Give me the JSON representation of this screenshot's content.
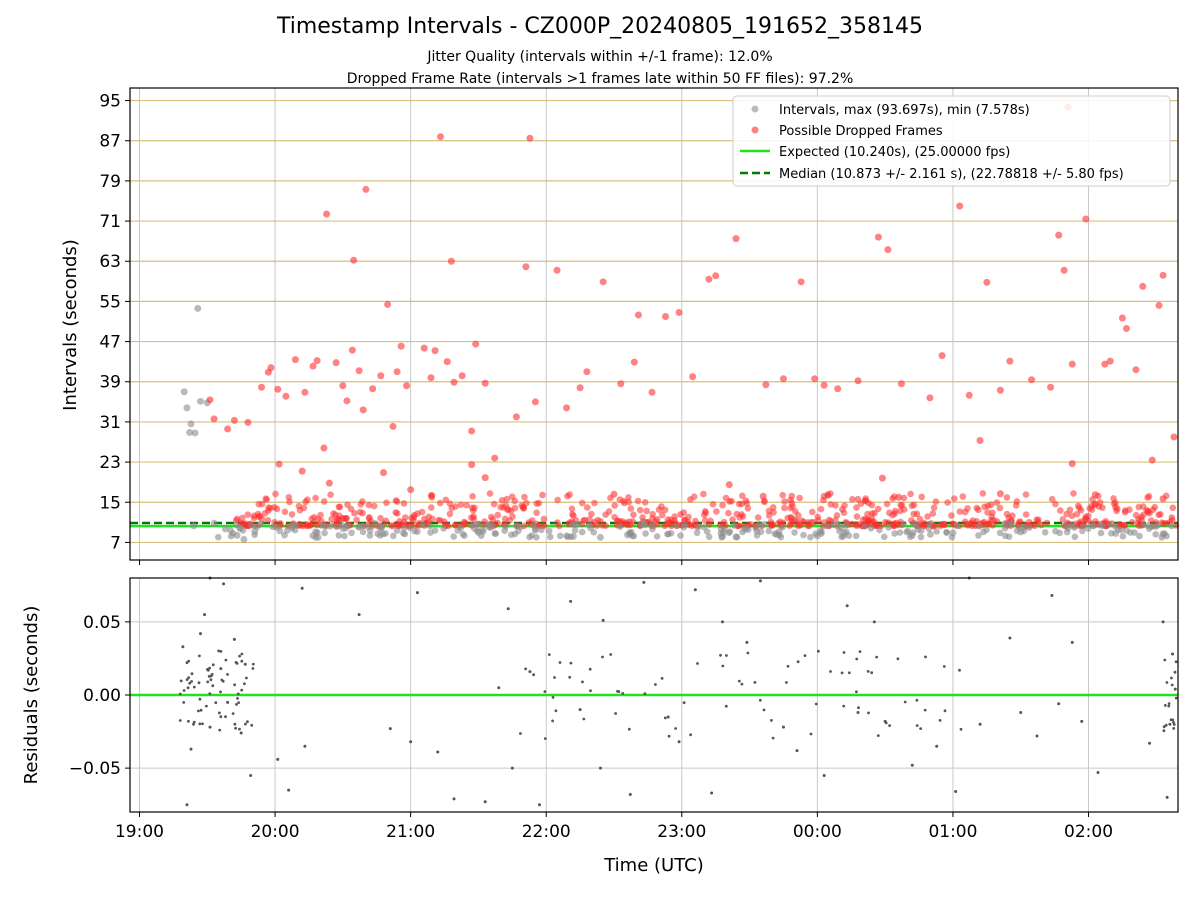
{
  "title": "Timestamp Intervals - CZ000P_20240805_191652_358145",
  "subtitle_1": "Jitter Quality (intervals within +/-1 frame): 12.0%",
  "subtitle_2": "Dropped Frame Rate (intervals >1 frames late within 50 FF files): 97.2%",
  "colors": {
    "intervals": "#8c8c8c",
    "dropped": "#ff2d2d",
    "expected": "#22e022",
    "median": "#007a00",
    "hgrid_top": "#d8bf7e",
    "grid": "#c8c8c8",
    "residuals": "#555555"
  },
  "chart_data": [
    {
      "type": "scatter",
      "panel": "top",
      "xlabel": "",
      "ylabel": "Intervals (seconds)",
      "ylim": [
        3.5,
        97.5
      ],
      "yticks": [
        "7",
        "15",
        "23",
        "31",
        "39",
        "47",
        "55",
        "63",
        "71",
        "79",
        "87",
        "95"
      ],
      "xlim_hours": [
        18.93,
        26.66
      ],
      "grid": "horizontal tan lines at y ticks, vertical gray lines at x ticks",
      "legend_placement": "top-right",
      "legend": [
        "Intervals, max (93.697s), min (7.578s)",
        "Possible Dropped Frames",
        "Expected (10.240s), (25.00000 fps)",
        "Median (10.873 +/- 2.161 s), (22.78818 +/- 5.80 fps)"
      ],
      "expected_interval": 10.24,
      "median_interval": 10.873,
      "series": [
        {
          "name": "Intervals, max (93.697s), min (7.578s)",
          "marker": "gray dots",
          "points": [
            [
              19.33,
              37.0
            ],
            [
              19.35,
              33.8
            ],
            [
              19.37,
              28.9
            ],
            [
              19.38,
              30.6
            ],
            [
              19.41,
              28.8
            ],
            [
              19.43,
              53.6
            ],
            [
              19.45,
              35.1
            ],
            [
              19.5,
              34.8
            ],
            [
              19.4,
              10.3
            ],
            [
              19.55,
              10.8
            ],
            [
              19.72,
              8.4
            ],
            [
              19.77,
              7.6
            ],
            [
              19.85,
              9.2
            ],
            [
              20.3,
              9.1
            ],
            [
              20.9,
              9.4
            ],
            [
              21.5,
              9.0
            ],
            [
              22.2,
              8.2
            ],
            [
              22.4,
              8.0
            ],
            [
              22.6,
              8.5
            ],
            [
              23.3,
              8.2
            ],
            [
              23.4,
              8.1
            ],
            [
              23.7,
              8.6
            ],
            [
              24.0,
              8.3
            ],
            [
              24.2,
              8.8
            ],
            [
              24.7,
              8.4
            ],
            [
              25.0,
              8.9
            ],
            [
              25.5,
              9.1
            ],
            [
              26.2,
              8.8
            ],
            [
              26.55,
              8.7
            ]
          ]
        },
        {
          "name": "Possible Dropped Frames",
          "marker": "red dots",
          "points": [
            [
              19.52,
              35.4
            ],
            [
              19.55,
              31.6
            ],
            [
              19.65,
              29.6
            ],
            [
              19.7,
              31.3
            ],
            [
              19.8,
              30.9
            ],
            [
              19.9,
              37.9
            ],
            [
              19.95,
              40.9
            ],
            [
              19.97,
              41.8
            ],
            [
              20.02,
              37.5
            ],
            [
              20.08,
              36.1
            ],
            [
              20.15,
              43.4
            ],
            [
              20.22,
              36.9
            ],
            [
              20.28,
              42.1
            ],
            [
              20.31,
              43.2
            ],
            [
              20.36,
              25.8
            ],
            [
              20.38,
              72.4
            ],
            [
              20.45,
              42.8
            ],
            [
              20.5,
              38.2
            ],
            [
              20.53,
              35.2
            ],
            [
              20.57,
              45.3
            ],
            [
              20.58,
              63.2
            ],
            [
              20.62,
              41.2
            ],
            [
              20.65,
              33.4
            ],
            [
              20.67,
              77.3
            ],
            [
              20.72,
              37.6
            ],
            [
              20.78,
              40.2
            ],
            [
              20.83,
              54.4
            ],
            [
              20.87,
              30.1
            ],
            [
              20.9,
              41.0
            ],
            [
              20.93,
              46.1
            ],
            [
              20.97,
              38.2
            ],
            [
              21.1,
              45.7
            ],
            [
              21.15,
              39.8
            ],
            [
              21.18,
              45.2
            ],
            [
              21.22,
              87.8
            ],
            [
              21.27,
              43.0
            ],
            [
              21.3,
              63.0
            ],
            [
              21.32,
              38.9
            ],
            [
              21.38,
              40.2
            ],
            [
              21.45,
              29.2
            ],
            [
              21.48,
              46.5
            ],
            [
              21.55,
              38.7
            ],
            [
              21.62,
              23.8
            ],
            [
              21.78,
              32.0
            ],
            [
              21.85,
              61.9
            ],
            [
              21.88,
              87.5
            ],
            [
              21.92,
              35.0
            ],
            [
              22.08,
              61.2
            ],
            [
              22.15,
              33.8
            ],
            [
              22.25,
              37.8
            ],
            [
              22.3,
              41.0
            ],
            [
              22.42,
              58.9
            ],
            [
              22.55,
              38.6
            ],
            [
              22.65,
              42.9
            ],
            [
              22.68,
              52.3
            ],
            [
              22.78,
              36.9
            ],
            [
              22.88,
              52.0
            ],
            [
              22.98,
              52.8
            ],
            [
              23.08,
              40.0
            ],
            [
              23.2,
              59.4
            ],
            [
              23.25,
              60.1
            ],
            [
              23.4,
              67.5
            ],
            [
              23.62,
              38.4
            ],
            [
              23.75,
              39.6
            ],
            [
              23.88,
              58.9
            ],
            [
              23.98,
              39.6
            ],
            [
              24.05,
              38.3
            ],
            [
              24.15,
              37.6
            ],
            [
              24.3,
              39.2
            ],
            [
              24.45,
              67.8
            ],
            [
              24.52,
              65.3
            ],
            [
              24.62,
              38.6
            ],
            [
              24.83,
              35.8
            ],
            [
              24.92,
              44.2
            ],
            [
              25.05,
              74.0
            ],
            [
              25.12,
              36.3
            ],
            [
              25.25,
              58.8
            ],
            [
              25.35,
              37.3
            ],
            [
              25.42,
              43.1
            ],
            [
              25.58,
              39.4
            ],
            [
              25.72,
              37.9
            ],
            [
              25.78,
              68.2
            ],
            [
              25.82,
              61.2
            ],
            [
              25.85,
              93.7
            ],
            [
              25.88,
              42.5
            ],
            [
              25.98,
              71.4
            ],
            [
              26.12,
              42.5
            ],
            [
              26.16,
              43.1
            ],
            [
              26.25,
              51.7
            ],
            [
              26.28,
              49.6
            ],
            [
              26.35,
              41.4
            ],
            [
              26.4,
              58.0
            ],
            [
              26.52,
              54.2
            ],
            [
              26.55,
              60.2
            ],
            [
              26.63,
              28.0
            ],
            [
              26.47,
              23.4
            ],
            [
              25.88,
              22.7
            ],
            [
              25.2,
              27.3
            ],
            [
              24.48,
              19.8
            ],
            [
              23.35,
              18.5
            ],
            [
              21.45,
              22.5
            ],
            [
              21.55,
              19.9
            ],
            [
              21.0,
              17.5
            ],
            [
              20.8,
              20.9
            ],
            [
              20.4,
              18.8
            ],
            [
              20.2,
              21.2
            ],
            [
              20.03,
              22.6
            ],
            [
              22.5,
              16.6
            ],
            [
              23.6,
              16.2
            ],
            [
              24.6,
              16.0
            ],
            [
              25.35,
              16.7
            ],
            [
              26.05,
              16.5
            ],
            [
              26.55,
              15.7
            ]
          ]
        }
      ]
    },
    {
      "type": "scatter",
      "panel": "bottom",
      "xlabel": "Time (UTC)",
      "ylabel": "Residuals (seconds)",
      "ylim": [
        -0.08,
        0.08
      ],
      "yticks": [
        "−0.05",
        "0.00",
        "0.05"
      ],
      "xticks": [
        "19:00",
        "20:00",
        "21:00",
        "22:00",
        "23:00",
        "00:00",
        "01:00",
        "02:00"
      ],
      "grid": "gray lines at x and y ticks",
      "zero_line": 0.0,
      "series": [
        {
          "name": "",
          "marker": "small dark gray dots",
          "points": [
            [
              19.32,
              0.033
            ],
            [
              19.35,
              -0.075
            ],
            [
              19.38,
              -0.037
            ],
            [
              19.45,
              0.042
            ],
            [
              19.48,
              0.055
            ],
            [
              19.52,
              0.08
            ],
            [
              19.52,
              -0.022
            ],
            [
              19.6,
              0.018
            ],
            [
              19.62,
              0.076
            ],
            [
              19.65,
              -0.005
            ],
            [
              19.7,
              0.038
            ],
            [
              19.75,
              -0.026
            ],
            [
              19.78,
              0.021
            ],
            [
              19.82,
              -0.055
            ],
            [
              20.02,
              -0.044
            ],
            [
              20.1,
              -0.065
            ],
            [
              20.2,
              0.073
            ],
            [
              20.22,
              -0.035
            ],
            [
              20.62,
              0.055
            ],
            [
              20.85,
              -0.023
            ],
            [
              21.0,
              -0.032
            ],
            [
              21.05,
              0.07
            ],
            [
              21.2,
              -0.039
            ],
            [
              21.32,
              -0.071
            ],
            [
              21.55,
              -0.073
            ],
            [
              21.65,
              0.005
            ],
            [
              21.72,
              0.059
            ],
            [
              21.75,
              -0.05
            ],
            [
              21.88,
              0.016
            ],
            [
              21.95,
              -0.075
            ],
            [
              22.18,
              0.064
            ],
            [
              22.25,
              -0.01
            ],
            [
              22.4,
              -0.05
            ],
            [
              22.42,
              0.051
            ],
            [
              22.62,
              -0.068
            ],
            [
              22.72,
              0.077
            ],
            [
              22.9,
              -0.015
            ],
            [
              22.98,
              -0.032
            ],
            [
              23.1,
              0.072
            ],
            [
              23.22,
              -0.067
            ],
            [
              23.3,
              0.05
            ],
            [
              23.48,
              0.036
            ],
            [
              23.58,
              0.078
            ],
            [
              23.75,
              -0.022
            ],
            [
              23.85,
              -0.038
            ],
            [
              24.05,
              -0.055
            ],
            [
              24.22,
              0.061
            ],
            [
              24.3,
              -0.012
            ],
            [
              24.42,
              0.05
            ],
            [
              24.5,
              -0.018
            ],
            [
              24.7,
              -0.048
            ],
            [
              24.88,
              -0.035
            ],
            [
              25.02,
              -0.066
            ],
            [
              25.12,
              0.08
            ],
            [
              25.2,
              -0.02
            ],
            [
              25.42,
              0.039
            ],
            [
              25.5,
              -0.012
            ],
            [
              25.62,
              -0.028
            ],
            [
              25.73,
              0.068
            ],
            [
              25.78,
              -0.006
            ],
            [
              25.88,
              0.036
            ],
            [
              25.95,
              -0.018
            ],
            [
              26.07,
              -0.053
            ],
            [
              26.45,
              -0.033
            ],
            [
              26.55,
              0.05
            ],
            [
              26.58,
              -0.07
            ],
            [
              26.6,
              -0.02
            ],
            [
              26.62,
              0.028
            ],
            [
              26.64,
              0.004
            ]
          ]
        }
      ]
    }
  ]
}
